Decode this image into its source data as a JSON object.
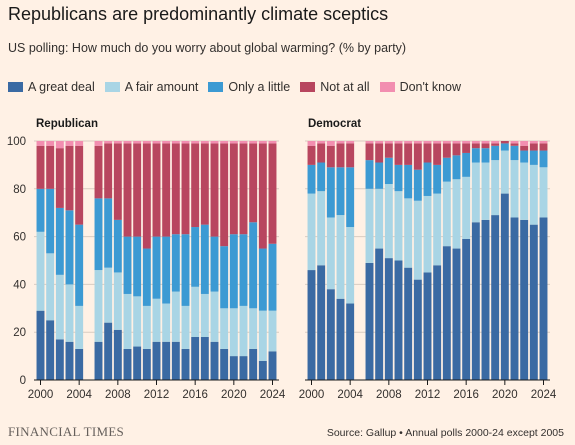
{
  "title": "Republicans are predominantly climate sceptics",
  "subtitle": "US polling: How much do you worry about global warming? (% by party)",
  "footer": {
    "publisher": "FINANCIAL TIMES",
    "source": "Source: Gallup • Annual polls 2000-24 except 2005"
  },
  "colors": {
    "background": "#fff1e5",
    "great_deal": "#3a6aa3",
    "fair_amount": "#a9d5e5",
    "only_little": "#3c9ad3",
    "not_at_all": "#b8465f",
    "dont_know": "#f28eb0",
    "grid": "#d9ccc1"
  },
  "legend": [
    {
      "label": "A great deal",
      "color": "#3a6aa3"
    },
    {
      "label": "A fair amount",
      "color": "#a9d5e5"
    },
    {
      "label": "Only a little",
      "color": "#3c9ad3"
    },
    {
      "label": "Not at all",
      "color": "#b8465f"
    },
    {
      "label": "Don't know",
      "color": "#f28eb0"
    }
  ],
  "chart_data": [
    {
      "type": "bar",
      "stacked": true,
      "title": "Republican",
      "ylim": [
        0,
        100
      ],
      "yticks": [
        0,
        20,
        40,
        60,
        80,
        100
      ],
      "xticks": [
        2000,
        2004,
        2008,
        2012,
        2016,
        2020,
        2024
      ],
      "x": [
        2000,
        2001,
        2002,
        2003,
        2004,
        2006,
        2007,
        2008,
        2009,
        2010,
        2011,
        2012,
        2013,
        2014,
        2015,
        2016,
        2017,
        2018,
        2019,
        2020,
        2021,
        2022,
        2023,
        2024
      ],
      "series": [
        {
          "name": "A great deal",
          "values": [
            29,
            25,
            17,
            16,
            13,
            16,
            24,
            21,
            13,
            14,
            13,
            16,
            16,
            16,
            13,
            18,
            18,
            16,
            13,
            10,
            10,
            13,
            8,
            12
          ]
        },
        {
          "name": "A fair amount",
          "values": [
            33,
            28,
            27,
            24,
            18,
            30,
            23,
            24,
            23,
            21,
            18,
            18,
            16,
            21,
            18,
            21,
            18,
            21,
            17,
            20,
            21,
            17,
            21,
            17
          ]
        },
        {
          "name": "Only a little",
          "values": [
            18,
            27,
            28,
            31,
            34,
            30,
            29,
            22,
            24,
            25,
            24,
            26,
            28,
            24,
            30,
            25,
            29,
            23,
            26,
            31,
            30,
            36,
            26,
            28
          ]
        },
        {
          "name": "Not at all",
          "values": [
            18,
            18,
            25,
            27,
            33,
            22,
            23,
            32,
            39,
            39,
            44,
            39,
            39,
            38,
            38,
            35,
            34,
            39,
            43,
            38,
            38,
            33,
            44,
            42
          ]
        },
        {
          "name": "Don't know",
          "values": [
            2,
            2,
            3,
            2,
            2,
            2,
            1,
            1,
            1,
            1,
            1,
            1,
            1,
            1,
            1,
            1,
            1,
            1,
            1,
            1,
            1,
            1,
            1,
            1
          ]
        }
      ]
    },
    {
      "type": "bar",
      "stacked": true,
      "title": "Democrat",
      "ylim": [
        0,
        100
      ],
      "yticks": [
        0,
        20,
        40,
        60,
        80,
        100
      ],
      "xticks": [
        2000,
        2004,
        2008,
        2012,
        2016,
        2020,
        2024
      ],
      "x": [
        2000,
        2001,
        2002,
        2003,
        2004,
        2006,
        2007,
        2008,
        2009,
        2010,
        2011,
        2012,
        2013,
        2014,
        2015,
        2016,
        2017,
        2018,
        2019,
        2020,
        2021,
        2022,
        2023,
        2024
      ],
      "series": [
        {
          "name": "A great deal",
          "values": [
            46,
            48,
            38,
            34,
            32,
            49,
            55,
            51,
            50,
            47,
            42,
            45,
            48,
            56,
            55,
            59,
            66,
            67,
            69,
            78,
            68,
            67,
            65,
            68
          ]
        },
        {
          "name": "A fair amount",
          "values": [
            32,
            31,
            30,
            35,
            32,
            31,
            25,
            31,
            29,
            29,
            33,
            32,
            30,
            27,
            29,
            26,
            25,
            24,
            23,
            18,
            24,
            24,
            25,
            21
          ]
        },
        {
          "name": "Only a little",
          "values": [
            12,
            12,
            21,
            20,
            25,
            12,
            11,
            11,
            11,
            14,
            13,
            14,
            12,
            10,
            10,
            10,
            6,
            6,
            6,
            3,
            6,
            5,
            6,
            7
          ]
        },
        {
          "name": "Not at all",
          "values": [
            8,
            8,
            9,
            10,
            10,
            7,
            8,
            6,
            9,
            9,
            11,
            8,
            9,
            6,
            5,
            4,
            2,
            2,
            1,
            1,
            1,
            2,
            3,
            3
          ]
        },
        {
          "name": "Don't know",
          "values": [
            2,
            1,
            2,
            1,
            1,
            1,
            1,
            1,
            1,
            1,
            1,
            1,
            1,
            1,
            1,
            1,
            1,
            1,
            1,
            0,
            1,
            2,
            1,
            1
          ]
        }
      ]
    }
  ]
}
